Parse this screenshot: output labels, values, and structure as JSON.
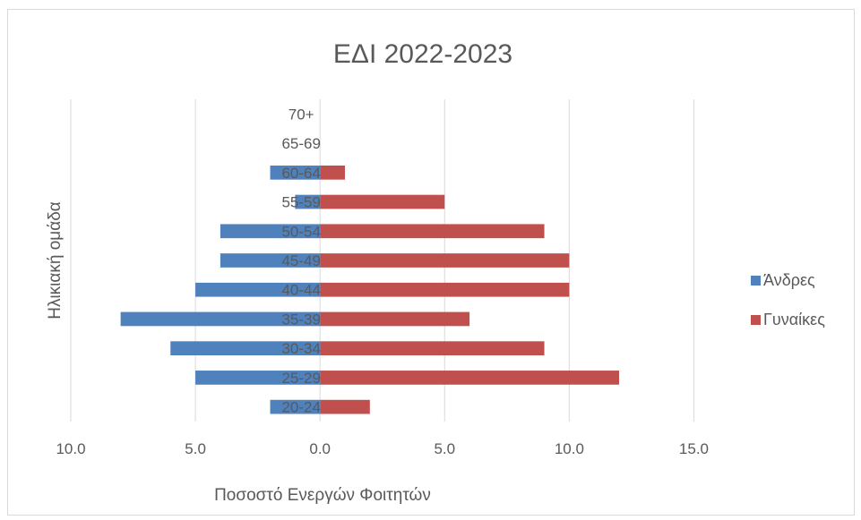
{
  "chart_data": {
    "type": "bar",
    "orientation": "horizontal",
    "title": "ΕΔΙ 2022-2023",
    "xlabel": "Ποσοστό Ενεργών Φοιτητών",
    "ylabel": "Ηλικιακή ομάδα",
    "categories": [
      "20-24",
      "25-29",
      "30-34",
      "35-39",
      "40-44",
      "45-49",
      "50-54",
      "55-59",
      "60-64",
      "65-69",
      "70+"
    ],
    "series": [
      {
        "name": "Άνδρες",
        "color": "#4f81bd",
        "values": [
          -2,
          -5,
          -6,
          -8,
          -5,
          -4,
          -4,
          -1,
          -2,
          0,
          0
        ]
      },
      {
        "name": "Γυναίκες",
        "color": "#c0504d",
        "values": [
          2,
          12,
          9,
          6,
          10,
          10,
          9,
          5,
          1,
          0,
          0
        ]
      }
    ],
    "xlim": [
      -10,
      17.5
    ],
    "xticks": [
      -10,
      -5,
      0,
      5,
      10,
      15
    ],
    "xtick_labels": [
      "10.0",
      "5.0",
      "0.0",
      "5.0",
      "10.0",
      "15.0"
    ],
    "grid": "vertical",
    "legend": "right"
  }
}
